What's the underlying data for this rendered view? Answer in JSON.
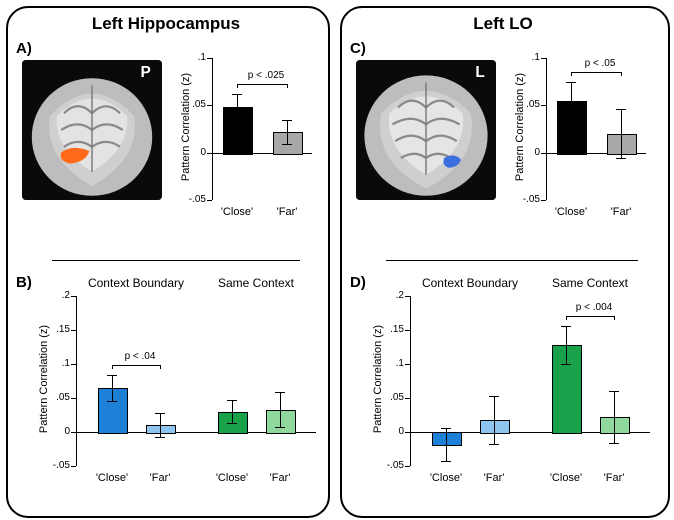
{
  "figure": {
    "panels": {
      "A": {
        "title": "Left Hippocampus",
        "letter": "A)",
        "brain_tag": "P",
        "roi_color": "#ff6a1a",
        "chart": {
          "type": "bar",
          "ylabel": "Pattern Correlation (z)",
          "ylim": [
            -0.05,
            0.1
          ],
          "yticks": [
            -0.05,
            0,
            0.05,
            0.1
          ],
          "ytick_labels": [
            "-.05",
            "0",
            ".05",
            ".1"
          ],
          "categories": [
            "'Close'",
            "'Far'"
          ],
          "bars": [
            {
              "value": 0.048,
              "err": 0.014,
              "fill": "#000000"
            },
            {
              "value": 0.022,
              "err": 0.013,
              "fill": "#a8a8a8"
            }
          ],
          "p_label": "p < .025",
          "bar_width": 0.55,
          "axis_color": "#000000",
          "label_fontsize": 11
        }
      },
      "B": {
        "letter": "B)",
        "chart": {
          "type": "grouped-bar",
          "ylabel": "Pattern Correlation (z)",
          "ylim": [
            -0.05,
            0.2
          ],
          "yticks": [
            -0.05,
            0,
            0.05,
            0.1,
            0.15,
            0.2
          ],
          "ytick_labels": [
            "-.05",
            "0",
            ".05",
            ".1",
            ".15",
            ".2"
          ],
          "groups": [
            {
              "title": "Context Boundary",
              "categories": [
                "'Close'",
                "'Far'"
              ],
              "bars": [
                {
                  "value": 0.065,
                  "err": 0.019,
                  "fill": "#1e7fd6"
                },
                {
                  "value": 0.01,
                  "err": 0.018,
                  "fill": "#8fc6ef"
                }
              ],
              "p_label": "p < .04"
            },
            {
              "title": "Same Context",
              "categories": [
                "'Close'",
                "'Far'"
              ],
              "bars": [
                {
                  "value": 0.03,
                  "err": 0.017,
                  "fill": "#1aa24a"
                },
                {
                  "value": 0.033,
                  "err": 0.026,
                  "fill": "#8fd99f"
                }
              ],
              "p_label": null
            }
          ],
          "bar_width": 0.6
        }
      },
      "C": {
        "title": "Left LO",
        "letter": "C)",
        "brain_tag": "L",
        "roi_color": "#3b6fe0",
        "chart": {
          "type": "bar",
          "ylabel": "Pattern Correlation (z)",
          "ylim": [
            -0.05,
            0.1
          ],
          "yticks": [
            -0.05,
            0,
            0.05,
            0.1
          ],
          "ytick_labels": [
            "-.05",
            "0",
            ".05",
            ".1"
          ],
          "categories": [
            "'Close'",
            "'Far'"
          ],
          "bars": [
            {
              "value": 0.055,
              "err": 0.02,
              "fill": "#000000"
            },
            {
              "value": 0.02,
              "err": 0.026,
              "fill": "#a8a8a8"
            }
          ],
          "p_label": "p < .05",
          "bar_width": 0.55
        }
      },
      "D": {
        "letter": "D)",
        "chart": {
          "type": "grouped-bar",
          "ylabel": "Pattern Correlation (z)",
          "ylim": [
            -0.05,
            0.2
          ],
          "yticks": [
            -0.05,
            0,
            0.05,
            0.1,
            0.15,
            0.2
          ],
          "ytick_labels": [
            "-.05",
            "0",
            ".05",
            ".1",
            ".15",
            ".2"
          ],
          "groups": [
            {
              "title": "Context Boundary",
              "categories": [
                "'Close'",
                "'Far'"
              ],
              "bars": [
                {
                  "value": -0.018,
                  "err": 0.024,
                  "fill": "#1e7fd6"
                },
                {
                  "value": 0.018,
                  "err": 0.035,
                  "fill": "#8fc6ef"
                }
              ],
              "p_label": null
            },
            {
              "title": "Same Context",
              "categories": [
                "'Close'",
                "'Far'"
              ],
              "bars": [
                {
                  "value": 0.128,
                  "err": 0.028,
                  "fill": "#1aa24a"
                },
                {
                  "value": 0.022,
                  "err": 0.038,
                  "fill": "#8fd99f"
                }
              ],
              "p_label": "p < .004"
            }
          ],
          "bar_width": 0.6
        }
      }
    }
  }
}
